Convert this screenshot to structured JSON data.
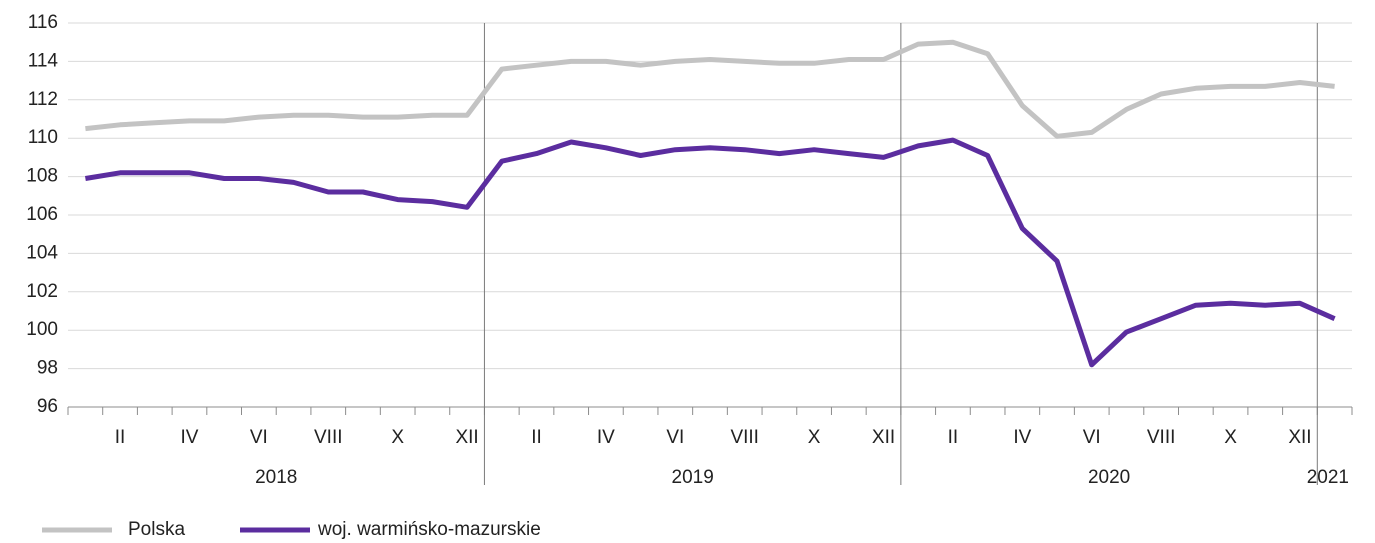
{
  "chart_data": {
    "type": "line",
    "categories": [
      null,
      "II",
      null,
      "IV",
      null,
      "VI",
      null,
      "VIII",
      null,
      "X",
      null,
      "XII",
      null,
      "II",
      null,
      "IV",
      null,
      "VI",
      null,
      "VIII",
      null,
      "X",
      null,
      "XII",
      null,
      "II",
      null,
      "IV",
      null,
      "VI",
      null,
      "VIII",
      null,
      "X",
      null,
      "XII",
      null
    ],
    "x_groups": [
      {
        "label": "2018",
        "count": 12
      },
      {
        "label": "2019",
        "count": 12
      },
      {
        "label": "2020",
        "count": 12
      },
      {
        "label": "2021",
        "count": 1
      }
    ],
    "series": [
      {
        "name": "Polska",
        "color": "#c3c3c3",
        "values": [
          110.5,
          110.7,
          110.8,
          110.9,
          110.9,
          111.1,
          111.2,
          111.2,
          111.1,
          111.1,
          111.2,
          111.2,
          113.6,
          113.8,
          114.0,
          114.0,
          113.8,
          114.0,
          114.1,
          114.0,
          113.9,
          113.9,
          114.1,
          114.1,
          114.9,
          115.0,
          114.4,
          111.7,
          110.1,
          110.3,
          111.5,
          112.3,
          112.6,
          112.7,
          112.7,
          112.9,
          112.7
        ]
      },
      {
        "name": "woj. warmińsko-mazurskie",
        "color": "#5b2d9f",
        "values": [
          107.9,
          108.2,
          108.2,
          108.2,
          107.9,
          107.9,
          107.7,
          107.2,
          107.2,
          106.8,
          106.7,
          106.4,
          108.8,
          109.2,
          109.8,
          109.5,
          109.1,
          109.4,
          109.5,
          109.4,
          109.2,
          109.4,
          109.2,
          109.0,
          109.6,
          109.9,
          109.1,
          105.3,
          103.6,
          98.2,
          99.9,
          100.6,
          101.3,
          101.4,
          101.3,
          101.4,
          100.6
        ]
      }
    ],
    "ylim": [
      96,
      116
    ],
    "yticks": [
      96,
      98,
      100,
      102,
      104,
      106,
      108,
      110,
      112,
      114,
      116
    ],
    "grid": true,
    "legend": "bottom-left"
  }
}
